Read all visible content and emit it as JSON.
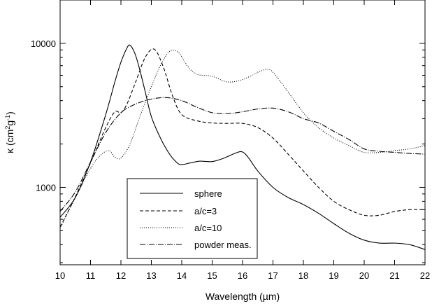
{
  "chart_data": {
    "type": "line",
    "xlabel": "Wavelength (µm)",
    "ylabel_main": "κ (cm",
    "ylabel_sup1": "2",
    "ylabel_mid": "g",
    "ylabel_sup2": "-1",
    "ylabel_end": ")",
    "x_ticks": [
      10,
      11,
      12,
      13,
      14,
      15,
      16,
      17,
      18,
      19,
      20,
      21,
      22
    ],
    "xlim": [
      10,
      22
    ],
    "y_scale": "log",
    "ylim": [
      290,
      20000
    ],
    "y_major_ticks": [
      1000,
      10000
    ],
    "y_tick_labels": [
      "1000",
      "10000"
    ],
    "y_minor_ticks": [
      300,
      400,
      500,
      600,
      700,
      800,
      900,
      2000,
      3000,
      4000,
      5000,
      6000,
      7000,
      8000,
      9000
    ],
    "grid": false,
    "legend_placement": "lower-center",
    "series": [
      {
        "name": "sphere",
        "dash": "solid",
        "x": [
          10.0,
          10.5,
          11.0,
          11.5,
          11.8,
          12.0,
          12.2,
          12.3,
          12.45,
          12.6,
          12.8,
          13.0,
          13.3,
          13.6,
          13.85,
          14.0,
          14.3,
          14.6,
          15.0,
          15.4,
          15.8,
          16.0,
          16.2,
          16.5,
          17.0,
          17.5,
          18.0,
          18.5,
          19.0,
          19.5,
          20.0,
          20.5,
          21.0,
          21.5,
          22.0
        ],
        "y": [
          620,
          850,
          1500,
          3200,
          5400,
          7400,
          9300,
          9700,
          8600,
          6800,
          4600,
          3100,
          2200,
          1700,
          1480,
          1440,
          1480,
          1520,
          1510,
          1600,
          1740,
          1760,
          1600,
          1300,
          1000,
          850,
          760,
          660,
          560,
          480,
          430,
          410,
          410,
          400,
          370
        ]
      },
      {
        "name": "a/c=3",
        "dash": "dashed",
        "x": [
          10.0,
          10.5,
          11.0,
          11.5,
          11.8,
          12.0,
          12.2,
          12.5,
          12.8,
          13.1,
          13.4,
          13.7,
          14.0,
          14.5,
          15.0,
          15.5,
          16.0,
          16.5,
          17.0,
          17.5,
          18.0,
          18.5,
          19.0,
          19.5,
          20.0,
          20.5,
          21.0,
          21.5,
          22.0
        ],
        "y": [
          530,
          860,
          1480,
          2600,
          3350,
          3300,
          3800,
          5500,
          8000,
          9100,
          6800,
          4300,
          3200,
          2900,
          2800,
          2780,
          2780,
          2600,
          2200,
          1700,
          1300,
          1000,
          800,
          700,
          640,
          640,
          680,
          700,
          700
        ]
      },
      {
        "name": "a/c=10",
        "dash": "dotted",
        "x": [
          10.0,
          10.5,
          11.0,
          11.3,
          11.6,
          11.8,
          12.0,
          12.3,
          12.6,
          13.0,
          13.3,
          13.6,
          13.9,
          14.2,
          14.5,
          15.0,
          15.5,
          16.0,
          16.5,
          16.8,
          17.0,
          17.5,
          18.0,
          18.5,
          19.0,
          19.5,
          20.0,
          20.5,
          21.0,
          21.5,
          22.0
        ],
        "y": [
          520,
          850,
          1350,
          1650,
          1800,
          1620,
          1600,
          2000,
          3000,
          5000,
          7000,
          8800,
          8600,
          6900,
          6100,
          5900,
          5400,
          5600,
          6300,
          6600,
          6300,
          4600,
          3300,
          2600,
          2200,
          1950,
          1750,
          1750,
          1800,
          1850,
          1950
        ]
      },
      {
        "name": "powder meas.",
        "dash": "dashdot",
        "x": [
          10.0,
          10.5,
          11.0,
          11.5,
          12.0,
          12.5,
          13.0,
          13.5,
          14.0,
          14.5,
          15.0,
          15.5,
          16.0,
          16.5,
          17.0,
          17.5,
          18.0,
          18.5,
          19.0,
          19.5,
          20.0,
          20.5,
          21.0,
          21.5,
          22.0
        ],
        "y": [
          680,
          930,
          1500,
          2400,
          3300,
          3800,
          4100,
          4200,
          4000,
          3600,
          3300,
          3250,
          3350,
          3500,
          3550,
          3350,
          3000,
          2800,
          2450,
          2150,
          1850,
          1780,
          1750,
          1720,
          1700
        ]
      }
    ]
  }
}
